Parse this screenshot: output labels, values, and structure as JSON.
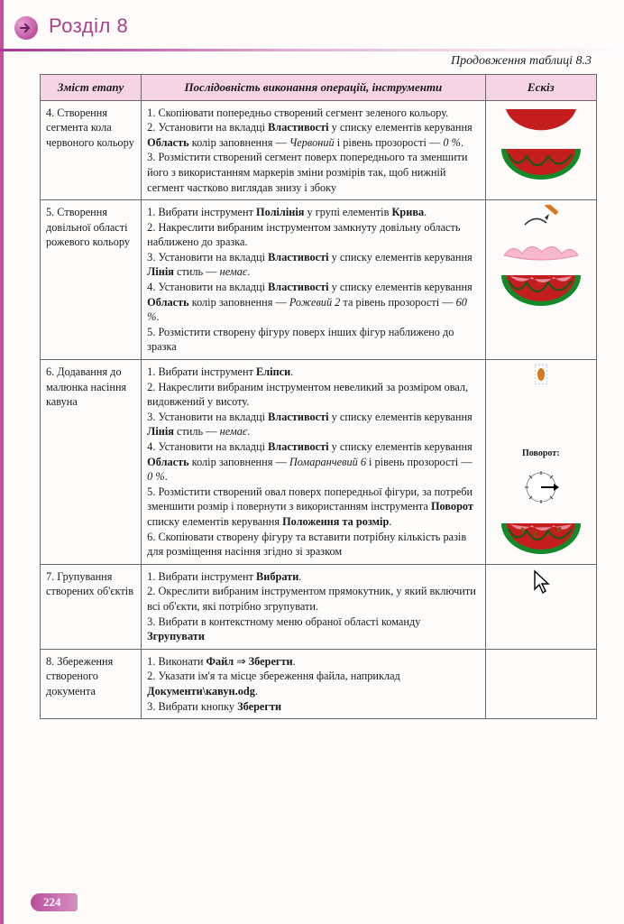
{
  "chapter": {
    "title": "Розділ 8"
  },
  "caption": "Продовження таблиці 8.3",
  "headers": {
    "stage": "Зміст етапу",
    "ops": "Послідовність виконання операцій, інструменти",
    "sketch": "Ескіз"
  },
  "rows": [
    {
      "stage": "4. Створення сегмента кола червоного кольору",
      "ops_html": "1. Скопіювати попередньо створений сегмент зеленого кольору.<br>2. Установити на вкладці <b>Властивості</b> у списку елементів керування <b>Область</b> колір заповнення — <em>Червоний</em> і рівень прозорості — <em>0 %</em>.<br>3. Розмістити створений сегмент поверх попереднього та зменшити його з використанням маркерів зміни розмірів так, щоб нижній сегмент частково виглядав знизу і збоку",
      "sketch": "two-semis"
    },
    {
      "stage": "5. Створення довільної області рожевого кольору",
      "ops_html": "1. Вибрати інструмент <b>Полілінія</b> у групі елементів <b>Крива</b>.<br>2. Накреслити вибраним інструментом замкнуту довільну область наближено до зразка.<br>3. Установити на вкладці <b>Властивості</b> у списку елементів керування <b>Лінія</b> стиль — <em>немає</em>.<br>4. Установити на вкладці <b>Властивості</b> у списку елементів керування <b>Область</b> колір заповнення — <em>Рожевий 2</em> та рівень прозорості — <em>60 %</em>.<br>5. Розмістити створену фігуру поверх інших фігур наближено до зразка",
      "sketch": "pencil-pink-melon"
    },
    {
      "stage": "6. Додавання до малюнка насіння кавуна",
      "ops_html": "1. Вибрати інструмент <b>Еліпси</b>.<br>2. Накреслити вибраним інструментом невеликий за розміром овал, видовжений у висоту.<br>3. Установити на вкладці <b>Властивості</b> у списку елементів керування <b>Лінія</b> стиль — <em>немає</em>.<br>4. Установити на вкладці <b>Властивості</b> у списку елементів керування <b>Область</b> колір заповнення — <em>Помаранчевий 6</em> і рівень прозорості — <em>0 %</em>.<br>5. Розмістити створений овал поверх попередньої фігури, за потреби зменшити розмір і повернути з використанням інструмента <b>Поворот</b> списку елементів керування <b>Положення та розмір</b>.<br>6. Скопіювати створену фігуру та вставити потрібну кількість разів для розміщення насіння згідно зі зразком",
      "sketch": "seed-rotate-melon"
    },
    {
      "stage": "7. Групування створених об'єктів",
      "ops_html": "1. Вибрати інструмент <b>Вибрати</b>.<br>2. Окреслити вибраним інструментом прямокутник, у який включити всі об'єкти, які потрібно згрупувати.<br>3. Вибрати в контекстному меню обраної області команду <b>Згрупувати</b>",
      "sketch": "cursor"
    },
    {
      "stage": "8. Збереження створеного документа",
      "ops_html": "1. Виконати <b>Файл</b> <span class='arrow-r'>⇒</span> <b>Зберегти</b>.<br>2. Указати ім'я та місце збереження файла, наприклад <b>Документи\\кавун.odg</b>.<br>3. Вибрати кнопку <b>Зберегти</b>",
      "sketch": "none"
    }
  ],
  "pageNumber": "224",
  "colors": {
    "headerBg": "#f6d3e5",
    "brand": "#a24390",
    "red": "#c41d1d",
    "green": "#138a2a",
    "darkgreen": "#0b5d19",
    "pink": "#f7b7cd",
    "orange": "#d9791f",
    "black": "#1a1a1a"
  },
  "labels": {
    "rotate": "Поворот:"
  }
}
